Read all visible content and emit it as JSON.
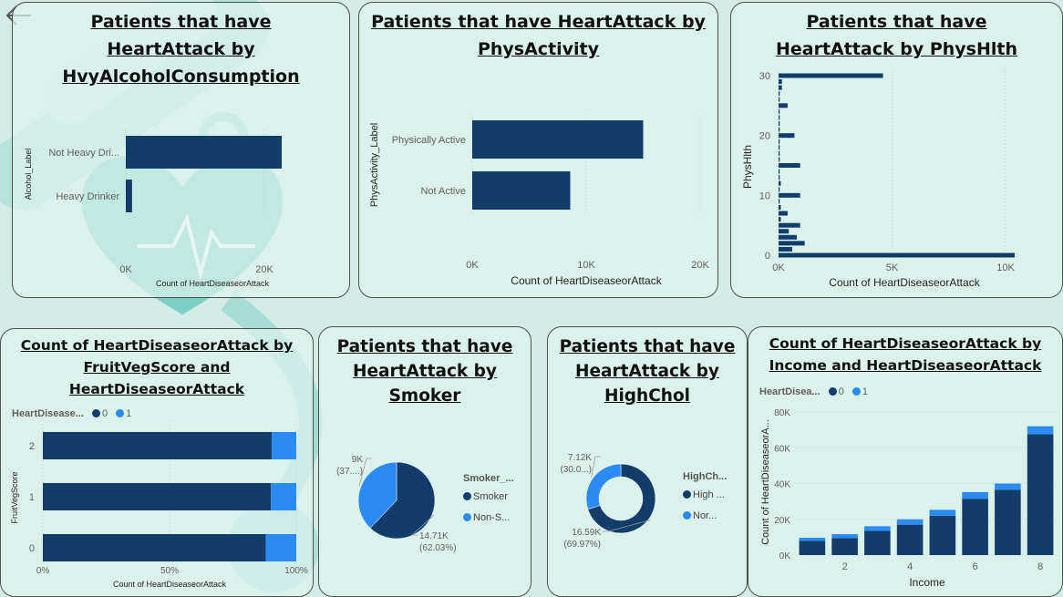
{
  "colors": {
    "dark": "#123d6b",
    "light": "#2a8cf2",
    "teal": "#7fd0c4",
    "bg": "#d3ece6"
  },
  "nav": {
    "back_icon": "arrow-left-icon"
  },
  "cards": {
    "alcohol": {
      "title": "Patients that have HeartAttack by HvyAlcoholConsumption"
    },
    "phys_activity": {
      "title": "Patients that have HeartAttack by PhysActivity"
    },
    "phys_hlth": {
      "title": "Patients that have HeartAttack by PhysHlth"
    },
    "fruitveg": {
      "title": "Count of HeartDiseaseorAttack by FruitVegScore and HeartDiseaseorAttack"
    },
    "smoker": {
      "title": "Patients that have HeartAttack by Smoker"
    },
    "highchol": {
      "title": "Patients that have HeartAttack by HighChol"
    },
    "income": {
      "title": "Count of HeartDiseaseorAttack by Income and HeartDiseaseorAttack"
    }
  },
  "chart_data": [
    {
      "id": "alcohol",
      "type": "bar",
      "orientation": "horizontal",
      "categories": [
        "Not Heavy Dri...",
        "Heavy Drinker"
      ],
      "values": [
        22500,
        900
      ],
      "ylabel": "Alcohol_Label",
      "xlabel": "Count of HeartDiseaseorAttack",
      "xlim": [
        0,
        25000
      ],
      "xticks": [
        0,
        20000
      ],
      "xtick_labels": [
        "0K",
        "20K"
      ]
    },
    {
      "id": "phys_activity",
      "type": "bar",
      "orientation": "horizontal",
      "categories": [
        "Physically Active",
        "Not Active"
      ],
      "values": [
        15000,
        8600
      ],
      "ylabel": "PhysActivity_Label",
      "xlabel": "Count of HeartDiseaseorAttack",
      "xlim": [
        0,
        20000
      ],
      "xticks": [
        0,
        10000,
        20000
      ],
      "xtick_labels": [
        "0K",
        "10K",
        "20K"
      ]
    },
    {
      "id": "phys_hlth",
      "type": "bar",
      "orientation": "horizontal",
      "categories": [
        0,
        1,
        2,
        3,
        4,
        5,
        6,
        7,
        8,
        9,
        10,
        11,
        12,
        13,
        14,
        15,
        16,
        17,
        18,
        19,
        20,
        21,
        22,
        23,
        24,
        25,
        26,
        27,
        28,
        29,
        30
      ],
      "values": [
        10400,
        600,
        1150,
        800,
        450,
        950,
        100,
        400,
        100,
        50,
        950,
        50,
        100,
        50,
        50,
        950,
        50,
        50,
        50,
        50,
        700,
        50,
        50,
        50,
        50,
        400,
        50,
        50,
        150,
        150,
        4600
      ],
      "ylabel": "PhysHlth",
      "xlabel": "Count of HeartDiseaseorAttack",
      "xlim": [
        0,
        11000
      ],
      "xticks": [
        0,
        5000,
        10000
      ],
      "xtick_labels": [
        "0K",
        "5K",
        "10K"
      ],
      "yticks": [
        0,
        10,
        20,
        30
      ]
    },
    {
      "id": "fruitveg",
      "type": "bar",
      "orientation": "horizontal",
      "stacked": "100%",
      "categories": [
        "2",
        "1",
        "0"
      ],
      "series": [
        {
          "name": "0",
          "values": [
            90.3,
            90.0,
            88.0
          ]
        },
        {
          "name": "1",
          "values": [
            9.7,
            10.0,
            12.0
          ]
        }
      ],
      "legend_title": "HeartDisease...",
      "ylabel": "FruitVegScore",
      "xlabel": "Count of HeartDiseaseorAttack",
      "xticks": [
        0,
        50,
        100
      ],
      "xtick_labels": [
        "0%",
        "50%",
        "100%"
      ]
    },
    {
      "id": "smoker",
      "type": "pie",
      "labels": [
        "Smoker",
        "Non-S..."
      ],
      "values": [
        14710,
        9000
      ],
      "data_labels": [
        [
          "14.71K",
          "(62.03%)"
        ],
        [
          "9K",
          "(37....)"
        ]
      ],
      "legend_title": "Smoker_..."
    },
    {
      "id": "highchol",
      "type": "pie",
      "donut": true,
      "labels": [
        "High ...",
        "Nor..."
      ],
      "values": [
        16590,
        7120
      ],
      "data_labels": [
        [
          "16.59K",
          "(69.97%)"
        ],
        [
          "7.12K",
          "(30.0...)"
        ]
      ],
      "legend_title": "HighCh..."
    },
    {
      "id": "income",
      "type": "bar",
      "stacked": true,
      "x": [
        1,
        2,
        3,
        4,
        5,
        6,
        7,
        8
      ],
      "series": [
        {
          "name": "0",
          "values": [
            8000,
            9500,
            13500,
            17000,
            22000,
            31500,
            36500,
            67500
          ]
        },
        {
          "name": "1",
          "values": [
            1700,
            2200,
            2600,
            3000,
            3300,
            3700,
            3500,
            4500
          ]
        }
      ],
      "legend_title": "HeartDisea...",
      "ylabel": "Count of HeartDiseaseorA...",
      "xlabel": "Income",
      "ylim": [
        0,
        80000
      ],
      "yticks": [
        0,
        20000,
        40000,
        60000,
        80000
      ],
      "ytick_labels": [
        "0K",
        "20K",
        "40K",
        "60K",
        "80K"
      ],
      "xticks": [
        2,
        4,
        6,
        8
      ]
    }
  ]
}
